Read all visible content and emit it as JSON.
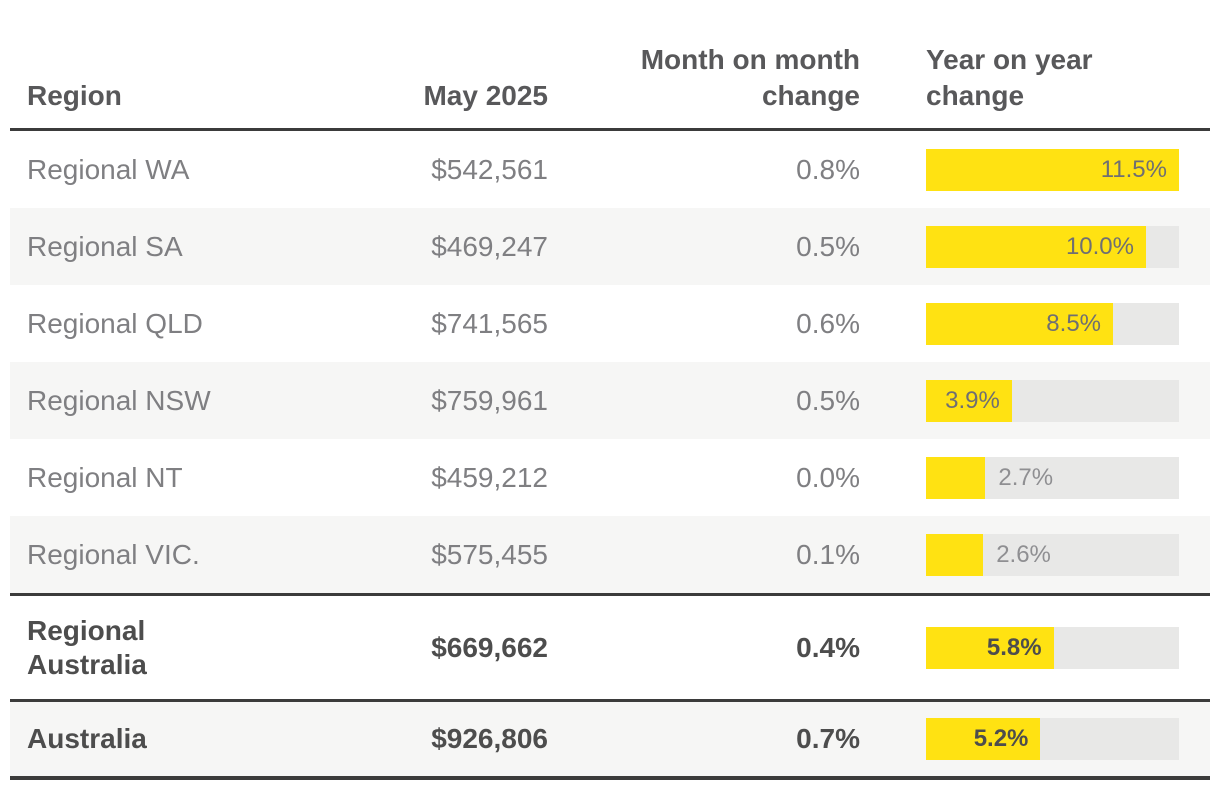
{
  "table": {
    "columns": [
      {
        "label": "Region"
      },
      {
        "label": "May 2025"
      },
      {
        "line1": "Month on month",
        "line2": "change"
      },
      {
        "line1": "Year on year",
        "line2": "change"
      }
    ],
    "rows": [
      {
        "region": "Regional WA",
        "price": "$542,561",
        "mom": "0.8%",
        "yoy": "11.5%",
        "yoy_value": 11.5,
        "bold": false
      },
      {
        "region": "Regional SA",
        "price": "$469,247",
        "mom": "0.5%",
        "yoy": "10.0%",
        "yoy_value": 10.0,
        "bold": false
      },
      {
        "region": "Regional QLD",
        "price": "$741,565",
        "mom": "0.6%",
        "yoy": "8.5%",
        "yoy_value": 8.5,
        "bold": false
      },
      {
        "region": "Regional NSW",
        "price": "$759,961",
        "mom": "0.5%",
        "yoy": "3.9%",
        "yoy_value": 3.9,
        "bold": false
      },
      {
        "region": "Regional NT",
        "price": "$459,212",
        "mom": "0.0%",
        "yoy": "2.7%",
        "yoy_value": 2.7,
        "bold": false
      },
      {
        "region": "Regional VIC.",
        "price": "$575,455",
        "mom": "0.1%",
        "yoy": "2.6%",
        "yoy_value": 2.6,
        "bold": false
      },
      {
        "region": "Regional\nAustralia",
        "price": "$669,662",
        "mom": "0.4%",
        "yoy": "5.8%",
        "yoy_value": 5.8,
        "bold": true
      },
      {
        "region": "Australia",
        "price": "$926,806",
        "mom": "0.7%",
        "yoy": "5.2%",
        "yoy_value": 5.2,
        "bold": true
      }
    ],
    "bar_max": 11.5
  },
  "chart_data": {
    "type": "table",
    "title": "",
    "columns": [
      "Region",
      "May 2025",
      "Month on month change",
      "Year on year change"
    ],
    "rows": [
      [
        "Regional WA",
        "$542,561",
        "0.8%",
        "11.5%"
      ],
      [
        "Regional SA",
        "$469,247",
        "0.5%",
        "10.0%"
      ],
      [
        "Regional QLD",
        "$741,565",
        "0.6%",
        "8.5%"
      ],
      [
        "Regional NSW",
        "$759,961",
        "0.5%",
        "3.9%"
      ],
      [
        "Regional NT",
        "$459,212",
        "0.0%",
        "2.7%"
      ],
      [
        "Regional VIC.",
        "$575,455",
        "0.1%",
        "2.6%"
      ],
      [
        "Regional Australia",
        "$669,662",
        "0.4%",
        "5.8%"
      ],
      [
        "Australia",
        "$926,806",
        "0.7%",
        "5.2%"
      ]
    ],
    "embedded_bar": {
      "type": "bar",
      "column": "Year on year change",
      "categories": [
        "Regional WA",
        "Regional SA",
        "Regional QLD",
        "Regional NSW",
        "Regional NT",
        "Regional VIC.",
        "Regional Australia",
        "Australia"
      ],
      "values": [
        11.5,
        10.0,
        8.5,
        3.9,
        2.7,
        2.6,
        5.8,
        5.2
      ],
      "xlim": [
        0,
        11.5
      ],
      "unit": "%"
    }
  },
  "colors": {
    "brand_yellow": "#ffe212",
    "bar_track_gray": "#e8e8e7",
    "row_alt_background": "#f6f6f5",
    "rule_dark": "#3b3b3b",
    "header_text": "#58585a",
    "body_text": "#7f7f82",
    "bold_text": "#4d4d4d"
  }
}
